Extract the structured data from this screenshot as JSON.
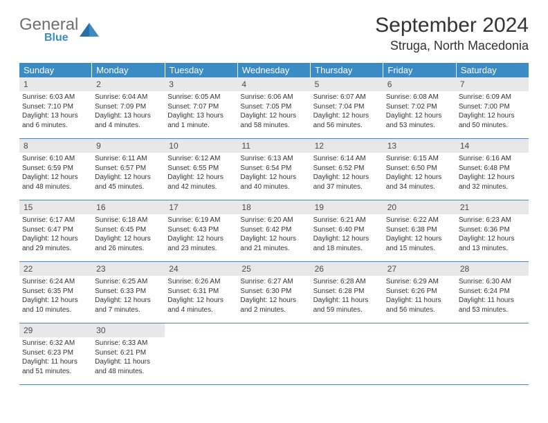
{
  "logo": {
    "word1": "General",
    "word2": "Blue"
  },
  "title": "September 2024",
  "location": "Struga, North Macedonia",
  "colors": {
    "header_bg": "#3b8bc4",
    "header_fg": "#ffffff",
    "daynum_bg": "#e8e8e8",
    "border": "#3b8bc4",
    "text": "#333333"
  },
  "dow": [
    "Sunday",
    "Monday",
    "Tuesday",
    "Wednesday",
    "Thursday",
    "Friday",
    "Saturday"
  ],
  "weeks": [
    [
      {
        "n": "1",
        "sr": "Sunrise: 6:03 AM",
        "ss": "Sunset: 7:10 PM",
        "dl": "Daylight: 13 hours and 6 minutes."
      },
      {
        "n": "2",
        "sr": "Sunrise: 6:04 AM",
        "ss": "Sunset: 7:09 PM",
        "dl": "Daylight: 13 hours and 4 minutes."
      },
      {
        "n": "3",
        "sr": "Sunrise: 6:05 AM",
        "ss": "Sunset: 7:07 PM",
        "dl": "Daylight: 13 hours and 1 minute."
      },
      {
        "n": "4",
        "sr": "Sunrise: 6:06 AM",
        "ss": "Sunset: 7:05 PM",
        "dl": "Daylight: 12 hours and 58 minutes."
      },
      {
        "n": "5",
        "sr": "Sunrise: 6:07 AM",
        "ss": "Sunset: 7:04 PM",
        "dl": "Daylight: 12 hours and 56 minutes."
      },
      {
        "n": "6",
        "sr": "Sunrise: 6:08 AM",
        "ss": "Sunset: 7:02 PM",
        "dl": "Daylight: 12 hours and 53 minutes."
      },
      {
        "n": "7",
        "sr": "Sunrise: 6:09 AM",
        "ss": "Sunset: 7:00 PM",
        "dl": "Daylight: 12 hours and 50 minutes."
      }
    ],
    [
      {
        "n": "8",
        "sr": "Sunrise: 6:10 AM",
        "ss": "Sunset: 6:59 PM",
        "dl": "Daylight: 12 hours and 48 minutes."
      },
      {
        "n": "9",
        "sr": "Sunrise: 6:11 AM",
        "ss": "Sunset: 6:57 PM",
        "dl": "Daylight: 12 hours and 45 minutes."
      },
      {
        "n": "10",
        "sr": "Sunrise: 6:12 AM",
        "ss": "Sunset: 6:55 PM",
        "dl": "Daylight: 12 hours and 42 minutes."
      },
      {
        "n": "11",
        "sr": "Sunrise: 6:13 AM",
        "ss": "Sunset: 6:54 PM",
        "dl": "Daylight: 12 hours and 40 minutes."
      },
      {
        "n": "12",
        "sr": "Sunrise: 6:14 AM",
        "ss": "Sunset: 6:52 PM",
        "dl": "Daylight: 12 hours and 37 minutes."
      },
      {
        "n": "13",
        "sr": "Sunrise: 6:15 AM",
        "ss": "Sunset: 6:50 PM",
        "dl": "Daylight: 12 hours and 34 minutes."
      },
      {
        "n": "14",
        "sr": "Sunrise: 6:16 AM",
        "ss": "Sunset: 6:48 PM",
        "dl": "Daylight: 12 hours and 32 minutes."
      }
    ],
    [
      {
        "n": "15",
        "sr": "Sunrise: 6:17 AM",
        "ss": "Sunset: 6:47 PM",
        "dl": "Daylight: 12 hours and 29 minutes."
      },
      {
        "n": "16",
        "sr": "Sunrise: 6:18 AM",
        "ss": "Sunset: 6:45 PM",
        "dl": "Daylight: 12 hours and 26 minutes."
      },
      {
        "n": "17",
        "sr": "Sunrise: 6:19 AM",
        "ss": "Sunset: 6:43 PM",
        "dl": "Daylight: 12 hours and 23 minutes."
      },
      {
        "n": "18",
        "sr": "Sunrise: 6:20 AM",
        "ss": "Sunset: 6:42 PM",
        "dl": "Daylight: 12 hours and 21 minutes."
      },
      {
        "n": "19",
        "sr": "Sunrise: 6:21 AM",
        "ss": "Sunset: 6:40 PM",
        "dl": "Daylight: 12 hours and 18 minutes."
      },
      {
        "n": "20",
        "sr": "Sunrise: 6:22 AM",
        "ss": "Sunset: 6:38 PM",
        "dl": "Daylight: 12 hours and 15 minutes."
      },
      {
        "n": "21",
        "sr": "Sunrise: 6:23 AM",
        "ss": "Sunset: 6:36 PM",
        "dl": "Daylight: 12 hours and 13 minutes."
      }
    ],
    [
      {
        "n": "22",
        "sr": "Sunrise: 6:24 AM",
        "ss": "Sunset: 6:35 PM",
        "dl": "Daylight: 12 hours and 10 minutes."
      },
      {
        "n": "23",
        "sr": "Sunrise: 6:25 AM",
        "ss": "Sunset: 6:33 PM",
        "dl": "Daylight: 12 hours and 7 minutes."
      },
      {
        "n": "24",
        "sr": "Sunrise: 6:26 AM",
        "ss": "Sunset: 6:31 PM",
        "dl": "Daylight: 12 hours and 4 minutes."
      },
      {
        "n": "25",
        "sr": "Sunrise: 6:27 AM",
        "ss": "Sunset: 6:30 PM",
        "dl": "Daylight: 12 hours and 2 minutes."
      },
      {
        "n": "26",
        "sr": "Sunrise: 6:28 AM",
        "ss": "Sunset: 6:28 PM",
        "dl": "Daylight: 11 hours and 59 minutes."
      },
      {
        "n": "27",
        "sr": "Sunrise: 6:29 AM",
        "ss": "Sunset: 6:26 PM",
        "dl": "Daylight: 11 hours and 56 minutes."
      },
      {
        "n": "28",
        "sr": "Sunrise: 6:30 AM",
        "ss": "Sunset: 6:24 PM",
        "dl": "Daylight: 11 hours and 53 minutes."
      }
    ],
    [
      {
        "n": "29",
        "sr": "Sunrise: 6:32 AM",
        "ss": "Sunset: 6:23 PM",
        "dl": "Daylight: 11 hours and 51 minutes."
      },
      {
        "n": "30",
        "sr": "Sunrise: 6:33 AM",
        "ss": "Sunset: 6:21 PM",
        "dl": "Daylight: 11 hours and 48 minutes."
      },
      {
        "empty": true
      },
      {
        "empty": true
      },
      {
        "empty": true
      },
      {
        "empty": true
      },
      {
        "empty": true
      }
    ]
  ]
}
